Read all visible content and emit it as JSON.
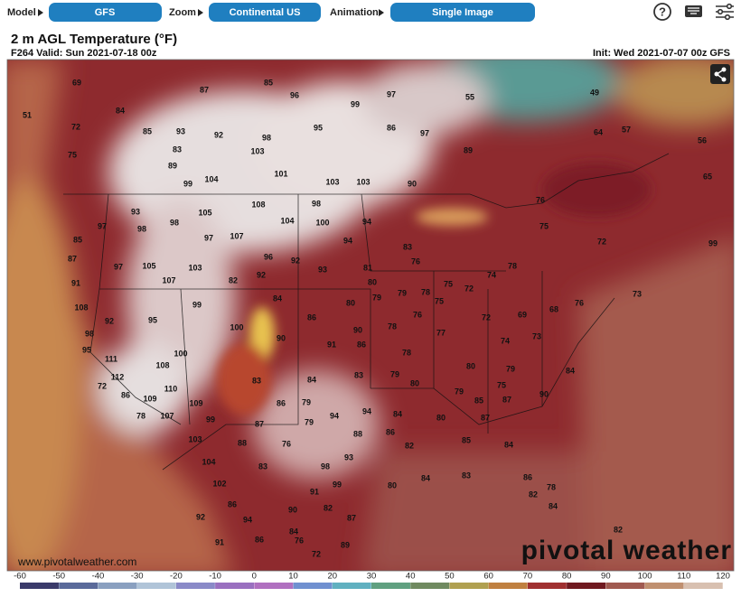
{
  "toolbar": {
    "model_label": "Model",
    "model": "GFS",
    "zoom_label": "Zoom",
    "zoom": "Continental US",
    "animation_label": "Animation",
    "animation": "Single Image",
    "help": "?"
  },
  "header": {
    "title": "2 m AGL Temperature (°F)",
    "valid": "F264 Valid: Sun 2021-07-18 00z",
    "init": "Init: Wed 2021-07-07 00z GFS"
  },
  "map": {
    "temperature_labels": [
      69,
      51,
      84,
      72,
      87,
      85,
      96,
      97,
      99,
      95,
      86,
      97,
      85,
      93,
      92,
      98,
      89,
      75,
      83,
      103,
      89,
      101,
      55,
      49,
      57,
      56,
      64,
      99,
      104,
      103,
      103,
      90,
      65,
      108,
      98,
      93,
      105,
      104,
      100,
      94,
      97,
      98,
      98,
      97,
      107,
      94,
      76,
      75,
      85,
      83,
      96,
      92,
      72,
      99,
      87,
      97,
      105,
      103,
      93,
      81,
      76,
      78,
      74,
      91,
      107,
      82,
      92,
      80,
      79,
      78,
      75,
      72,
      108,
      84,
      80,
      79,
      75,
      99,
      92,
      95,
      100,
      86,
      76,
      72,
      69,
      68,
      76,
      73,
      98,
      90,
      90,
      78,
      77,
      73,
      91,
      86,
      74,
      95,
      100,
      78,
      111,
      108,
      83,
      79,
      84,
      80,
      80,
      79,
      84,
      112,
      72,
      110,
      83,
      79,
      86,
      109,
      109,
      86,
      94,
      79,
      85,
      87,
      90,
      75,
      78,
      107,
      99,
      87,
      79,
      94,
      80,
      87,
      84,
      86,
      88,
      82,
      103,
      88,
      76,
      93,
      85,
      84,
      104,
      83,
      98,
      84,
      83,
      80,
      102,
      91,
      99,
      86,
      78,
      82,
      92,
      86,
      94,
      90,
      82,
      87,
      84,
      82,
      91,
      86,
      76,
      72,
      89,
      84
    ]
  },
  "watermark": "www.pivotalweather.com",
  "logo": "pivotal weather",
  "colorbar": {
    "ticks": [
      -60,
      -50,
      -40,
      -30,
      -20,
      -10,
      0,
      10,
      20,
      30,
      40,
      50,
      60,
      70,
      80,
      90,
      100,
      110,
      120
    ]
  }
}
